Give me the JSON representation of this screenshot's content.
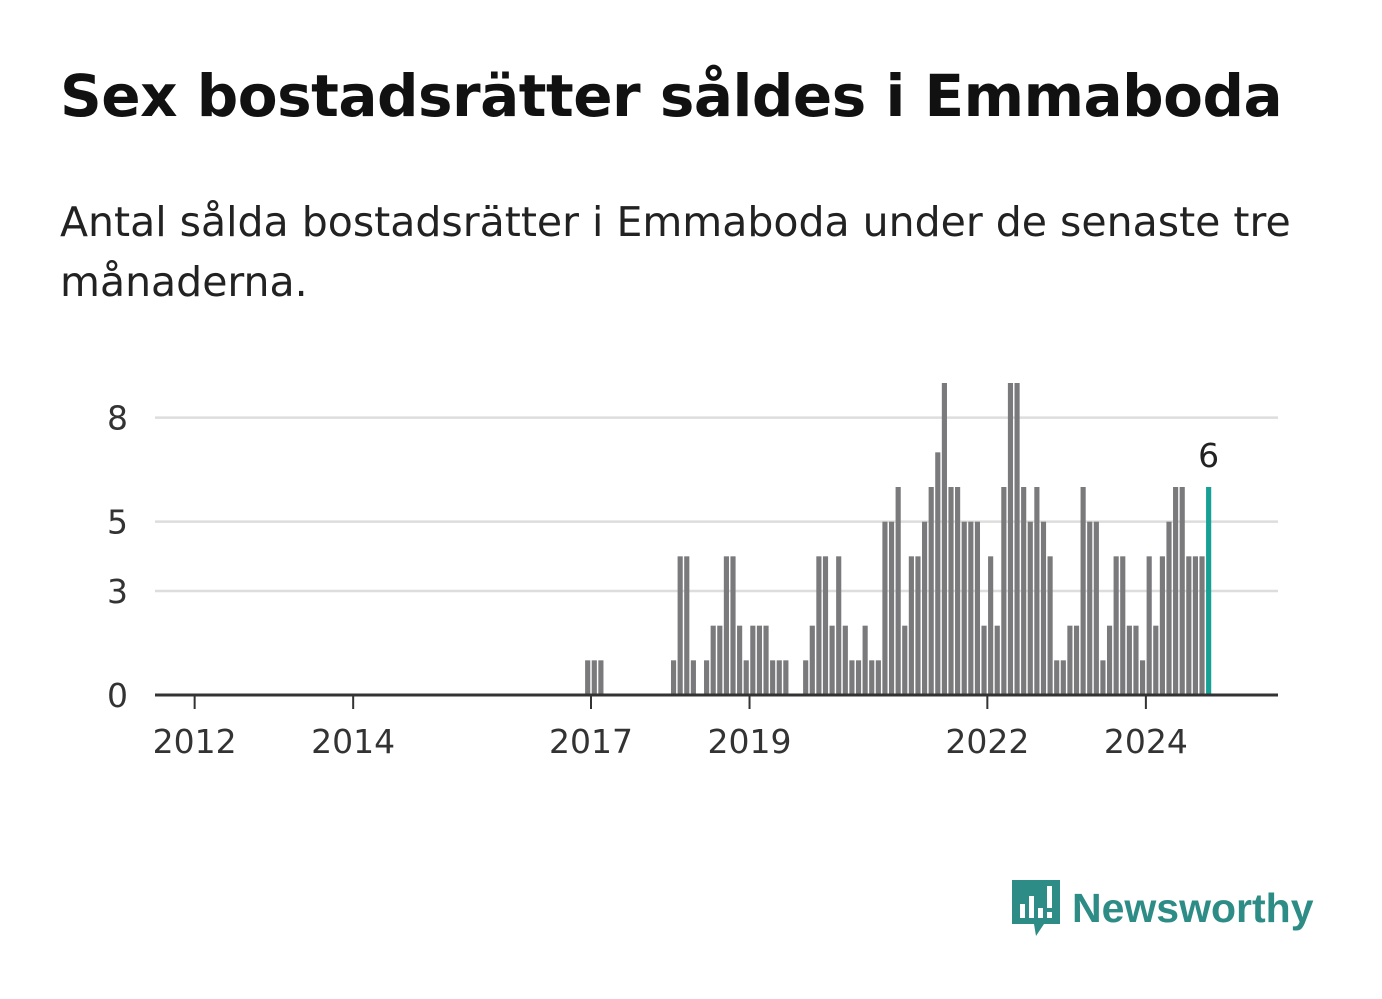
{
  "title": "Sex bostadsrätter såldes i Emmaboda",
  "subtitle": "Antal sålda bostadsrätter i Emmaboda under de senaste tre månaderna.",
  "brand": {
    "name": "Newsworthy",
    "color": "#2e8c87"
  },
  "colors": {
    "bar": "#7a7a7d",
    "highlight": "#17a095",
    "grid": "#dddddd",
    "axis": "#333333"
  },
  "chart_data": {
    "type": "bar",
    "title": "Sex bostadsrätter såldes i Emmaboda",
    "xlabel": "",
    "ylabel": "",
    "ylim": [
      0,
      9
    ],
    "yticks": [
      0,
      3,
      5,
      8
    ],
    "ytick_labels": [
      "0",
      "3",
      "5",
      "8"
    ],
    "xticks": [
      "2012",
      "2014",
      "2017",
      "2019",
      "2022",
      "2024"
    ],
    "x_range": [
      "2011-07",
      "2025-09"
    ],
    "grid": true,
    "legend": "none",
    "highlight_label": "6",
    "series": [
      {
        "x": [
          "2016-12",
          "2017-01",
          "2017-02",
          "2018-01",
          "2018-02",
          "2018-03",
          "2018-04",
          "2018-05",
          "2018-06",
          "2018-07",
          "2018-08",
          "2018-09",
          "2018-10",
          "2018-11",
          "2018-12",
          "2019-01",
          "2019-02",
          "2019-03",
          "2019-04",
          "2019-05",
          "2019-06",
          "2019-07",
          "2019-09",
          "2019-10",
          "2019-11",
          "2019-12",
          "2020-01",
          "2020-02",
          "2020-03",
          "2020-04",
          "2020-05",
          "2020-06",
          "2020-07",
          "2020-08",
          "2020-09",
          "2020-10",
          "2020-11",
          "2020-12",
          "2021-01",
          "2021-02",
          "2021-03",
          "2021-04",
          "2021-05",
          "2021-06",
          "2021-07",
          "2021-08",
          "2021-09",
          "2021-10",
          "2021-11",
          "2021-12",
          "2022-01",
          "2022-02",
          "2022-03",
          "2022-04",
          "2022-05",
          "2022-06",
          "2022-07",
          "2022-08",
          "2022-09",
          "2022-10",
          "2022-11",
          "2022-12",
          "2023-01",
          "2023-02",
          "2023-03",
          "2023-04",
          "2023-05",
          "2023-06",
          "2023-07",
          "2023-08",
          "2023-09",
          "2023-10",
          "2023-11",
          "2023-12",
          "2024-01",
          "2024-02",
          "2024-03",
          "2024-04",
          "2024-05",
          "2024-06",
          "2024-07",
          "2024-08",
          "2024-09",
          "2024-10"
        ],
        "values": [
          1,
          1,
          1,
          1,
          4,
          4,
          1,
          0,
          1,
          2,
          2,
          4,
          4,
          2,
          1,
          2,
          2,
          2,
          1,
          1,
          1,
          0,
          1,
          2,
          4,
          4,
          2,
          4,
          2,
          1,
          1,
          2,
          1,
          1,
          5,
          5,
          6,
          2,
          4,
          4,
          5,
          6,
          7,
          9,
          6,
          6,
          5,
          5,
          5,
          2,
          4,
          2,
          6,
          9,
          9,
          6,
          5,
          6,
          5,
          4,
          1,
          1,
          2,
          2,
          6,
          5,
          5,
          1,
          2,
          4,
          4,
          2,
          2,
          1,
          4,
          2,
          4,
          5,
          6,
          6,
          4,
          4,
          4,
          6
        ]
      }
    ]
  }
}
